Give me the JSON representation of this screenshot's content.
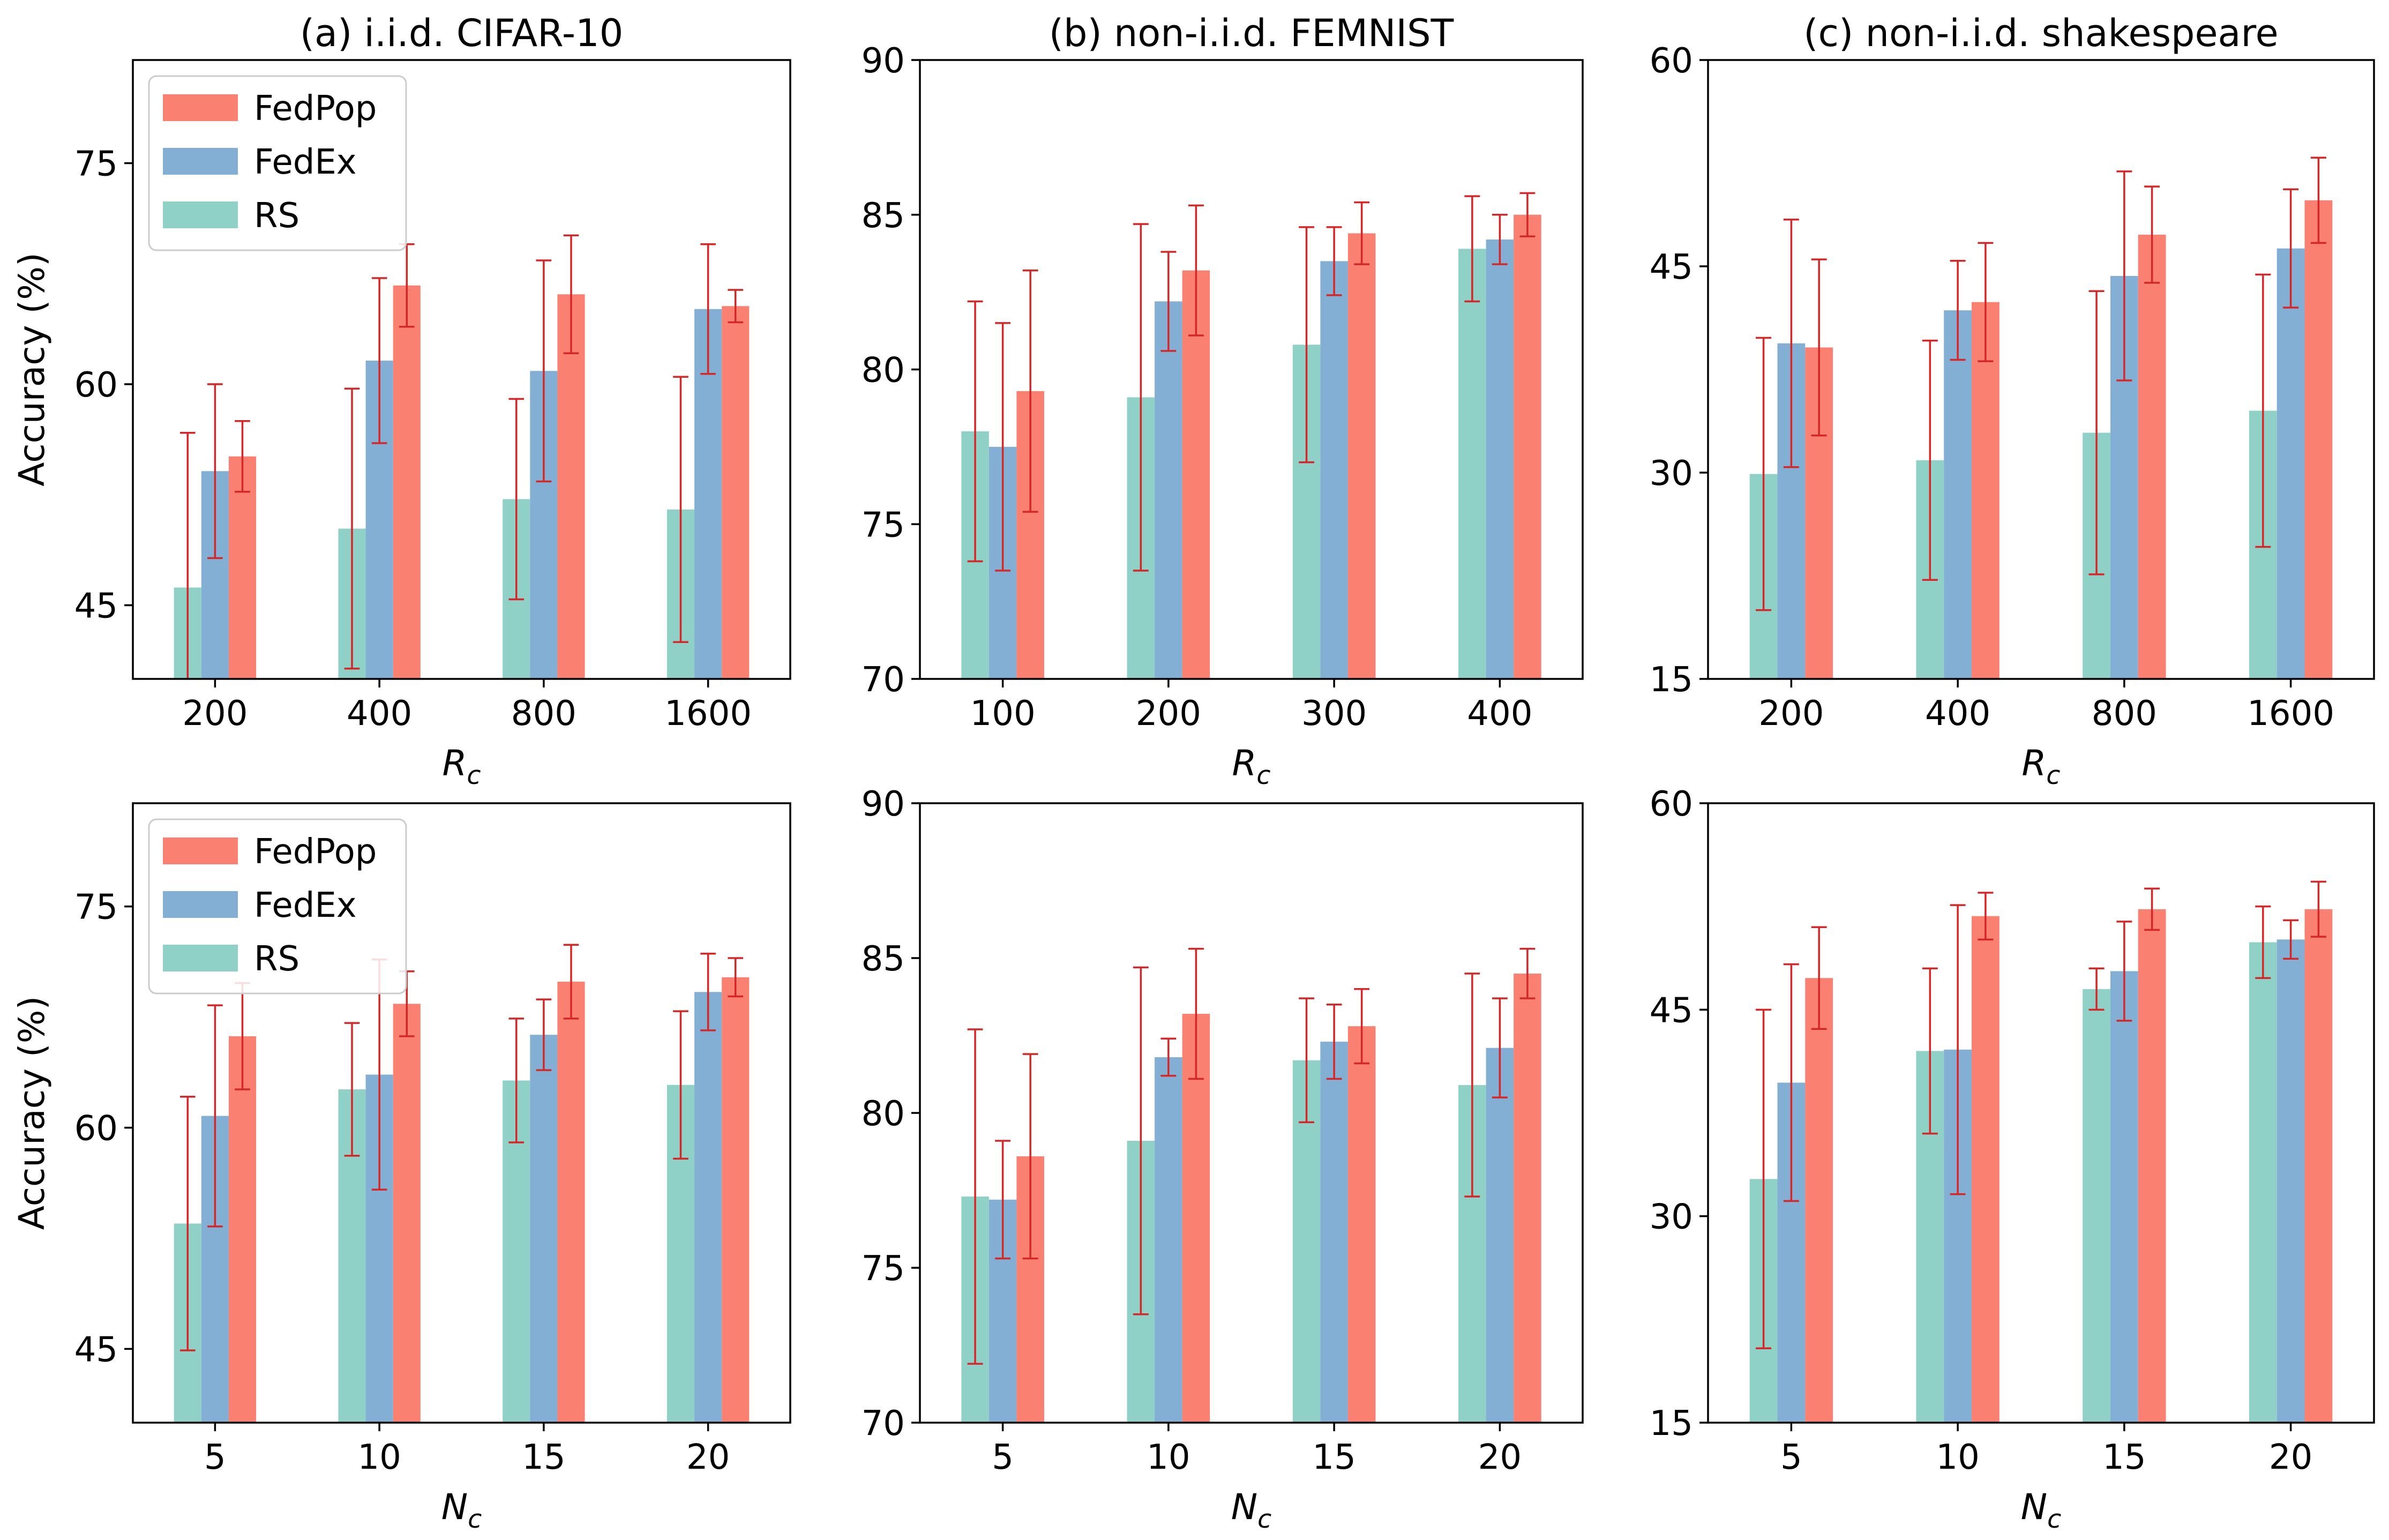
{
  "colors": {
    "FedPop": "#fa8072",
    "FedEx": "#82afd3",
    "RS": "#8fd1c7",
    "errorbar": "#d62728"
  },
  "legend": [
    "FedPop",
    "FedEx",
    "RS"
  ],
  "chart_data": [
    {
      "id": "a_rc",
      "type": "bar",
      "title": "(a) i.i.d. CIFAR-10",
      "xlabel": "R_c",
      "ylabel": "Accuracy (%)",
      "ylim": [
        40,
        82
      ],
      "yticks": [
        45,
        60,
        75
      ],
      "categories": [
        "200",
        "400",
        "800",
        "1600"
      ],
      "legend": true,
      "legend_loc": "upper-left",
      "series": [
        {
          "name": "RS",
          "values": [
            46.2,
            50.2,
            52.2,
            51.5
          ],
          "err": [
            10.5,
            9.5,
            6.8,
            9.0
          ]
        },
        {
          "name": "FedEx",
          "values": [
            54.1,
            61.6,
            60.9,
            65.1
          ],
          "err": [
            5.9,
            5.6,
            7.5,
            4.4
          ]
        },
        {
          "name": "FedPop",
          "values": [
            55.1,
            66.7,
            66.1,
            65.3
          ],
          "err": [
            2.4,
            2.8,
            4.0,
            1.1
          ]
        }
      ]
    },
    {
      "id": "b_rc",
      "type": "bar",
      "title": "(b) non-i.i.d. FEMNIST",
      "xlabel": "R_c",
      "ylabel": "",
      "ylim": [
        70,
        90
      ],
      "yticks": [
        70,
        75,
        80,
        85,
        90
      ],
      "categories": [
        "100",
        "200",
        "300",
        "400"
      ],
      "legend": false,
      "series": [
        {
          "name": "RS",
          "values": [
            78.0,
            79.1,
            80.8,
            83.9
          ],
          "err": [
            4.2,
            5.6,
            3.8,
            1.7
          ]
        },
        {
          "name": "FedEx",
          "values": [
            77.5,
            82.2,
            83.5,
            84.2
          ],
          "err": [
            4.0,
            1.6,
            1.1,
            0.8
          ]
        },
        {
          "name": "FedPop",
          "values": [
            79.3,
            83.2,
            84.4,
            85.0
          ],
          "err": [
            3.9,
            2.1,
            1.0,
            0.7
          ]
        }
      ]
    },
    {
      "id": "c_rc",
      "type": "bar",
      "title": "(c) non-i.i.d. shakespeare",
      "xlabel": "R_c",
      "ylabel": "",
      "ylim": [
        15,
        60
      ],
      "yticks": [
        15,
        30,
        45,
        60
      ],
      "categories": [
        "200",
        "400",
        "800",
        "1600"
      ],
      "legend": false,
      "series": [
        {
          "name": "RS",
          "values": [
            29.9,
            30.9,
            32.9,
            34.5
          ],
          "err": [
            9.9,
            8.7,
            10.3,
            9.9
          ]
        },
        {
          "name": "FedEx",
          "values": [
            39.4,
            41.8,
            44.3,
            46.3
          ],
          "err": [
            9.0,
            3.6,
            7.6,
            4.3
          ]
        },
        {
          "name": "FedPop",
          "values": [
            39.1,
            42.4,
            47.3,
            49.8
          ],
          "err": [
            6.4,
            4.3,
            3.5,
            3.1
          ]
        }
      ]
    },
    {
      "id": "a_nc",
      "type": "bar",
      "title": "",
      "xlabel": "N_c",
      "ylabel": "Accuracy (%)",
      "ylim": [
        40,
        82
      ],
      "yticks": [
        45,
        60,
        75
      ],
      "categories": [
        "5",
        "10",
        "15",
        "20"
      ],
      "legend": true,
      "legend_loc": "upper-left",
      "series": [
        {
          "name": "RS",
          "values": [
            53.5,
            62.6,
            63.2,
            62.9
          ],
          "err": [
            8.6,
            4.5,
            4.2,
            5.0
          ]
        },
        {
          "name": "FedEx",
          "values": [
            60.8,
            63.6,
            66.3,
            69.2
          ],
          "err": [
            7.5,
            7.8,
            2.4,
            2.6
          ]
        },
        {
          "name": "FedPop",
          "values": [
            66.2,
            68.4,
            69.9,
            70.2
          ],
          "err": [
            3.6,
            2.2,
            2.5,
            1.3
          ]
        }
      ]
    },
    {
      "id": "b_nc",
      "type": "bar",
      "title": "",
      "xlabel": "N_c",
      "ylabel": "",
      "ylim": [
        70,
        90
      ],
      "yticks": [
        70,
        75,
        80,
        85,
        90
      ],
      "categories": [
        "5",
        "10",
        "15",
        "20"
      ],
      "legend": false,
      "series": [
        {
          "name": "RS",
          "values": [
            77.3,
            79.1,
            81.7,
            80.9
          ],
          "err": [
            5.4,
            5.6,
            2.0,
            3.6
          ]
        },
        {
          "name": "FedEx",
          "values": [
            77.2,
            81.8,
            82.3,
            82.1
          ],
          "err": [
            1.9,
            0.6,
            1.2,
            1.6
          ]
        },
        {
          "name": "FedPop",
          "values": [
            78.6,
            83.2,
            82.8,
            84.5
          ],
          "err": [
            3.3,
            2.1,
            1.2,
            0.8
          ]
        }
      ]
    },
    {
      "id": "c_nc",
      "type": "bar",
      "title": "",
      "xlabel": "N_c",
      "ylabel": "",
      "ylim": [
        15,
        60
      ],
      "yticks": [
        15,
        30,
        45,
        60
      ],
      "categories": [
        "5",
        "10",
        "15",
        "20"
      ],
      "legend": false,
      "series": [
        {
          "name": "RS",
          "values": [
            32.7,
            42.0,
            46.5,
            49.9
          ],
          "err": [
            12.3,
            6.0,
            1.5,
            2.6
          ]
        },
        {
          "name": "FedEx",
          "values": [
            39.7,
            42.1,
            47.8,
            50.1
          ],
          "err": [
            8.6,
            10.5,
            3.6,
            1.4
          ]
        },
        {
          "name": "FedPop",
          "values": [
            47.3,
            51.8,
            52.3,
            52.3
          ],
          "err": [
            3.7,
            1.7,
            1.5,
            2.0
          ]
        }
      ]
    }
  ]
}
